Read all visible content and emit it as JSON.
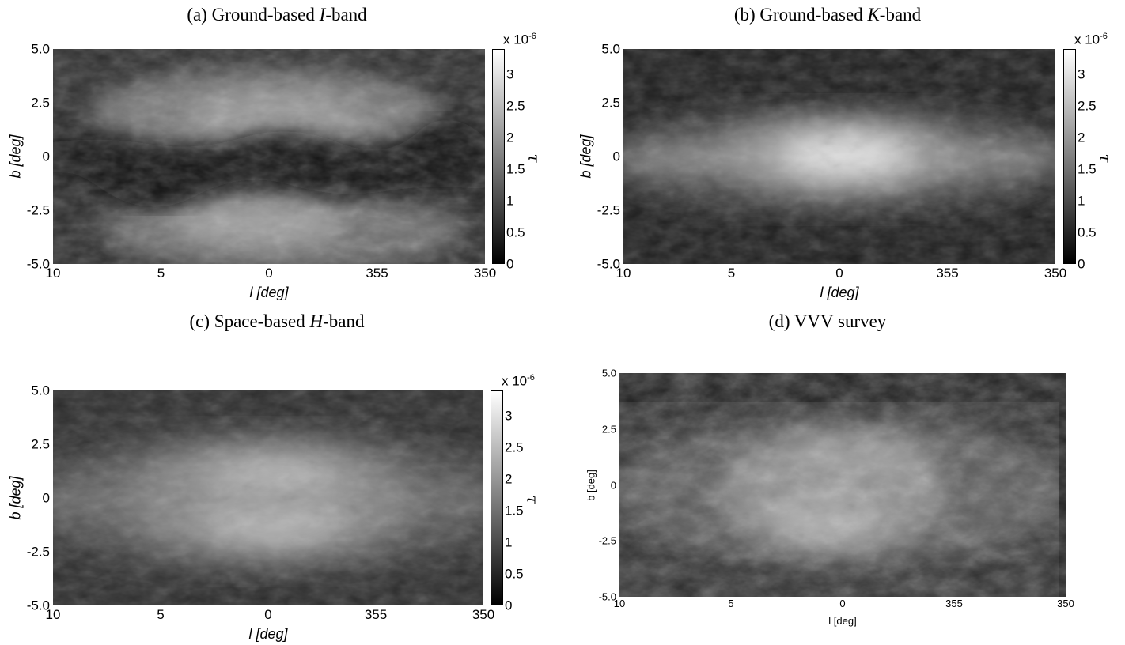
{
  "chart_data": [
    {
      "type": "heatmap",
      "title": "(a) Ground-based ",
      "title_italic": "I",
      "title_suffix": "-band",
      "xlabel": "l [deg]",
      "ylabel": "b [deg]",
      "x_ticks": [
        "10",
        "5",
        "0",
        "355",
        "350"
      ],
      "y_ticks": [
        "5.0",
        "2.5",
        "0",
        "-2.5",
        "-5.0"
      ],
      "xlim": [
        10,
        -10
      ],
      "ylim": [
        -5,
        5
      ],
      "colorbar": {
        "label": "τ",
        "multiplier": "x 10",
        "exponent": "-6",
        "ticks": [
          "3",
          "2.5",
          "2",
          "1.5",
          "1",
          "0.5",
          "0"
        ],
        "range": [
          0,
          3.4
        ],
        "colormap": "gray"
      },
      "description_feature": "dark-plane"
    },
    {
      "type": "heatmap",
      "title": "(b) Ground-based ",
      "title_italic": "K",
      "title_suffix": "-band",
      "xlabel": "l [deg]",
      "ylabel": "b [deg]",
      "x_ticks": [
        "10",
        "5",
        "0",
        "355",
        "350"
      ],
      "y_ticks": [
        "5.0",
        "2.5",
        "0",
        "-2.5",
        "-5.0"
      ],
      "xlim": [
        10,
        -10
      ],
      "ylim": [
        -5,
        5
      ],
      "colorbar": {
        "label": "τ",
        "multiplier": "x 10",
        "exponent": "-6",
        "ticks": [
          "3",
          "2.5",
          "2",
          "1.5",
          "1",
          "0.5",
          "0"
        ],
        "range": [
          0,
          3.4
        ],
        "colormap": "gray"
      },
      "description_feature": "bright-plane"
    },
    {
      "type": "heatmap",
      "title": "(c) Space-based ",
      "title_italic": "H",
      "title_suffix": "-band",
      "xlabel": "l [deg]",
      "ylabel": "b [deg]",
      "x_ticks": [
        "10",
        "5",
        "0",
        "355",
        "350"
      ],
      "y_ticks": [
        "5.0",
        "2.5",
        "0",
        "-2.5",
        "-5.0"
      ],
      "xlim": [
        10,
        -10
      ],
      "ylim": [
        -5,
        5
      ],
      "colorbar": {
        "label": "τ",
        "multiplier": "x 10",
        "exponent": "-6",
        "ticks": [
          "3",
          "2.5",
          "2",
          "1.5",
          "1",
          "0.5",
          "0"
        ],
        "range": [
          0,
          3.4
        ],
        "colormap": "gray"
      },
      "description_feature": "bright-bulge"
    },
    {
      "type": "heatmap",
      "title": "(d) VVV survey",
      "title_italic": "",
      "title_suffix": "",
      "xlabel": "l [deg]",
      "ylabel": "b [deg]",
      "x_ticks": [
        "10",
        "5",
        "0",
        "355",
        "350"
      ],
      "y_ticks": [
        "5.0",
        "2.5",
        "0",
        "-2.5",
        "-5.0"
      ],
      "xlim": [
        10,
        -10
      ],
      "ylim": [
        -5,
        5
      ],
      "colormap": "gray"
    }
  ]
}
